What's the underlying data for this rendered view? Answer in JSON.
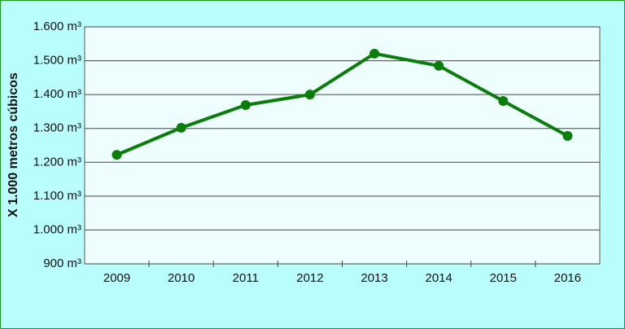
{
  "chart_data": {
    "type": "line",
    "y_label": "X 1.000 metros cúbicos",
    "categories": [
      "2009",
      "2010",
      "2011",
      "2012",
      "2013",
      "2014",
      "2015",
      "2016"
    ],
    "series": [
      {
        "name": "metros cúbicos",
        "color": "#0a7d0a",
        "values": [
          1222,
          1302,
          1369,
          1400,
          1521,
          1485,
          1381,
          1278
        ]
      }
    ],
    "ylim": [
      900,
      1600
    ],
    "yticks": [
      {
        "value": 900,
        "label": "900 m³"
      },
      {
        "value": 1000,
        "label": "1.000 m³"
      },
      {
        "value": 1100,
        "label": "1.100 m³"
      },
      {
        "value": 1200,
        "label": "1.200 m³"
      },
      {
        "value": 1300,
        "label": "1.300 m³"
      },
      {
        "value": 1400,
        "label": "1.400 m³"
      },
      {
        "value": 1500,
        "label": "1.500 m³"
      },
      {
        "value": 1600,
        "label": "1.600 m³"
      }
    ],
    "grid": true
  }
}
